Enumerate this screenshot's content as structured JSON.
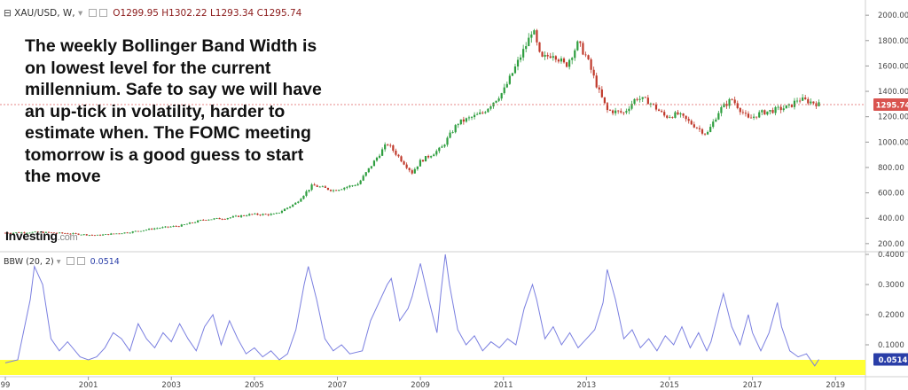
{
  "header": {
    "symbol": "XAU/USD, W,",
    "open": "O1299.95",
    "high": "H1302.22",
    "low": "L1293.34",
    "close": "C1295.74"
  },
  "indicator": {
    "label": "BBW (20, 2)",
    "value": "0.0514"
  },
  "annotation": "The weekly Bollinger Band Width is on lowest level for the current millennium. Safe to say we will have an up-tick in volatility, harder to estimate when. The FOMC meeting tomorrow is a good guess to start the move",
  "brand": {
    "name": "Investing",
    "suffix": ".com"
  },
  "last_price_label": "1295.74",
  "bbw_last_label": "0.0514",
  "colors": {
    "up": "#2e9e3f",
    "down": "#c0392b",
    "bbw_line": "#7a7fe0",
    "highlight": "#ffff33",
    "price_line": "#e06060",
    "price_tag": "#d9534f",
    "bbw_tag": "#2a3ea8"
  },
  "chart_data": [
    {
      "type": "candlestick",
      "title": "XAU/USD, W,",
      "ylim": [
        150,
        2050
      ],
      "y_ticks": [
        "200.00",
        "400.00",
        "600.00",
        "800.00",
        "1000.00",
        "1200.00",
        "1400.00",
        "1600.00",
        "1800.00",
        "2000.00"
      ],
      "x_ticks": [
        "99",
        "2001",
        "2003",
        "2005",
        "2007",
        "2009",
        "2011",
        "2013",
        "2015",
        "2017",
        "2019"
      ],
      "xlim": [
        1999.0,
        2019.7
      ],
      "last_price": 1295.74,
      "series": [
        {
          "points": [
            [
              1999.0,
              285
            ],
            [
              1999.8,
              290
            ],
            [
              2000.5,
              280
            ],
            [
              2001.2,
              265
            ],
            [
              2002.0,
              290
            ],
            [
              2002.6,
              320
            ],
            [
              2003.2,
              340
            ],
            [
              2003.8,
              390
            ],
            [
              2004.3,
              400
            ],
            [
              2004.9,
              430
            ],
            [
              2005.5,
              430
            ],
            [
              2006.0,
              520
            ],
            [
              2006.4,
              660
            ],
            [
              2006.9,
              620
            ],
            [
              2007.5,
              670
            ],
            [
              2008.0,
              900
            ],
            [
              2008.2,
              990
            ],
            [
              2008.8,
              760
            ],
            [
              2009.0,
              850
            ],
            [
              2009.5,
              950
            ],
            [
              2009.9,
              1150
            ],
            [
              2010.5,
              1230
            ],
            [
              2011.0,
              1400
            ],
            [
              2011.6,
              1800
            ],
            [
              2011.7,
              1900
            ],
            [
              2011.9,
              1650
            ],
            [
              2012.2,
              1700
            ],
            [
              2012.5,
              1600
            ],
            [
              2012.8,
              1780
            ],
            [
              2013.0,
              1670
            ],
            [
              2013.3,
              1400
            ],
            [
              2013.5,
              1250
            ],
            [
              2013.9,
              1230
            ],
            [
              2014.2,
              1350
            ],
            [
              2014.5,
              1320
            ],
            [
              2014.9,
              1200
            ],
            [
              2015.2,
              1220
            ],
            [
              2015.6,
              1130
            ],
            [
              2015.9,
              1060
            ],
            [
              2016.2,
              1250
            ],
            [
              2016.5,
              1340
            ],
            [
              2016.9,
              1180
            ],
            [
              2017.2,
              1230
            ],
            [
              2017.5,
              1250
            ],
            [
              2017.9,
              1280
            ],
            [
              2018.1,
              1340
            ],
            [
              2018.5,
              1310
            ],
            [
              2018.6,
              1295.74
            ]
          ]
        }
      ]
    },
    {
      "type": "line",
      "title": "BBW (20, 2)",
      "ylim": [
        0.0,
        0.4
      ],
      "y_ticks": [
        "0.1000",
        "0.2000",
        "0.3000",
        "0.4000"
      ],
      "last_value": 0.0514,
      "series": [
        {
          "name": "BBW (20, 2)",
          "points": [
            [
              1999.0,
              0.04
            ],
            [
              1999.3,
              0.05
            ],
            [
              1999.6,
              0.25
            ],
            [
              1999.7,
              0.36
            ],
            [
              1999.9,
              0.3
            ],
            [
              2000.1,
              0.12
            ],
            [
              2000.3,
              0.08
            ],
            [
              2000.5,
              0.11
            ],
            [
              2000.8,
              0.06
            ],
            [
              2001.0,
              0.05
            ],
            [
              2001.2,
              0.06
            ],
            [
              2001.4,
              0.09
            ],
            [
              2001.6,
              0.14
            ],
            [
              2001.8,
              0.12
            ],
            [
              2002.0,
              0.08
            ],
            [
              2002.2,
              0.17
            ],
            [
              2002.4,
              0.12
            ],
            [
              2002.6,
              0.09
            ],
            [
              2002.8,
              0.14
            ],
            [
              2003.0,
              0.11
            ],
            [
              2003.2,
              0.17
            ],
            [
              2003.4,
              0.12
            ],
            [
              2003.6,
              0.08
            ],
            [
              2003.8,
              0.16
            ],
            [
              2004.0,
              0.2
            ],
            [
              2004.2,
              0.1
            ],
            [
              2004.4,
              0.18
            ],
            [
              2004.6,
              0.12
            ],
            [
              2004.8,
              0.07
            ],
            [
              2005.0,
              0.09
            ],
            [
              2005.2,
              0.06
            ],
            [
              2005.4,
              0.08
            ],
            [
              2005.6,
              0.05
            ],
            [
              2005.8,
              0.07
            ],
            [
              2006.0,
              0.15
            ],
            [
              2006.2,
              0.3
            ],
            [
              2006.3,
              0.36
            ],
            [
              2006.5,
              0.25
            ],
            [
              2006.7,
              0.12
            ],
            [
              2006.9,
              0.08
            ],
            [
              2007.1,
              0.1
            ],
            [
              2007.3,
              0.07
            ],
            [
              2007.6,
              0.08
            ],
            [
              2007.8,
              0.18
            ],
            [
              2008.0,
              0.24
            ],
            [
              2008.2,
              0.3
            ],
            [
              2008.3,
              0.32
            ],
            [
              2008.5,
              0.18
            ],
            [
              2008.7,
              0.22
            ],
            [
              2008.8,
              0.26
            ],
            [
              2009.0,
              0.37
            ],
            [
              2009.2,
              0.25
            ],
            [
              2009.4,
              0.14
            ],
            [
              2009.5,
              0.28
            ],
            [
              2009.6,
              0.4
            ],
            [
              2009.7,
              0.3
            ],
            [
              2009.9,
              0.15
            ],
            [
              2010.1,
              0.1
            ],
            [
              2010.3,
              0.13
            ],
            [
              2010.5,
              0.08
            ],
            [
              2010.7,
              0.11
            ],
            [
              2010.9,
              0.09
            ],
            [
              2011.1,
              0.12
            ],
            [
              2011.3,
              0.1
            ],
            [
              2011.5,
              0.22
            ],
            [
              2011.7,
              0.3
            ],
            [
              2011.8,
              0.25
            ],
            [
              2012.0,
              0.12
            ],
            [
              2012.2,
              0.16
            ],
            [
              2012.4,
              0.1
            ],
            [
              2012.6,
              0.14
            ],
            [
              2012.8,
              0.09
            ],
            [
              2013.0,
              0.12
            ],
            [
              2013.2,
              0.15
            ],
            [
              2013.4,
              0.24
            ],
            [
              2013.5,
              0.35
            ],
            [
              2013.7,
              0.25
            ],
            [
              2013.9,
              0.12
            ],
            [
              2014.1,
              0.15
            ],
            [
              2014.3,
              0.09
            ],
            [
              2014.5,
              0.12
            ],
            [
              2014.7,
              0.08
            ],
            [
              2014.9,
              0.13
            ],
            [
              2015.1,
              0.1
            ],
            [
              2015.3,
              0.16
            ],
            [
              2015.5,
              0.09
            ],
            [
              2015.7,
              0.14
            ],
            [
              2015.9,
              0.08
            ],
            [
              2016.0,
              0.11
            ],
            [
              2016.2,
              0.22
            ],
            [
              2016.3,
              0.27
            ],
            [
              2016.5,
              0.16
            ],
            [
              2016.7,
              0.1
            ],
            [
              2016.9,
              0.2
            ],
            [
              2017.0,
              0.14
            ],
            [
              2017.2,
              0.08
            ],
            [
              2017.4,
              0.14
            ],
            [
              2017.6,
              0.24
            ],
            [
              2017.7,
              0.16
            ],
            [
              2017.9,
              0.08
            ],
            [
              2018.1,
              0.06
            ],
            [
              2018.3,
              0.07
            ],
            [
              2018.5,
              0.03
            ],
            [
              2018.6,
              0.0514
            ]
          ]
        }
      ]
    }
  ]
}
